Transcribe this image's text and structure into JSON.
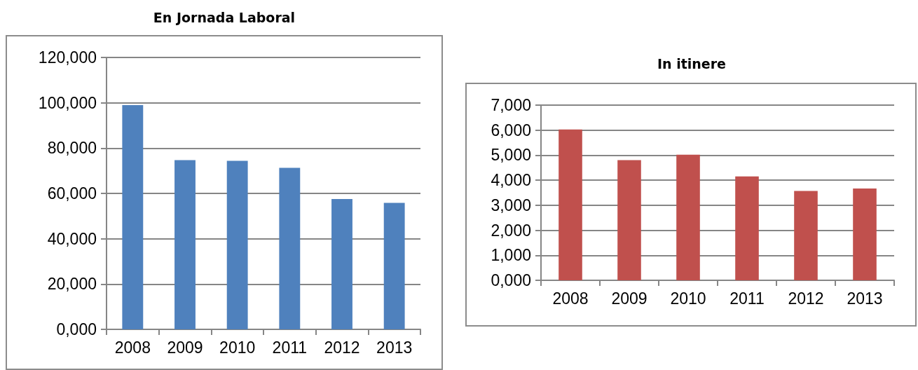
{
  "chart_data": [
    {
      "type": "bar",
      "title": "En Jornada Laboral",
      "categories": [
        "2008",
        "2009",
        "2010",
        "2011",
        "2012",
        "2013"
      ],
      "values": [
        99.0,
        74.7,
        74.4,
        71.3,
        57.5,
        55.8
      ],
      "color": "#4f81bd",
      "ylim": [
        0,
        120
      ],
      "yticks": [
        {
          "value": 0,
          "label": "0,000"
        },
        {
          "value": 20,
          "label": "20,000"
        },
        {
          "value": 40,
          "label": "40,000"
        },
        {
          "value": 60,
          "label": "60,000"
        },
        {
          "value": 80,
          "label": "80,000"
        },
        {
          "value": 100,
          "label": "100,000"
        },
        {
          "value": 120,
          "label": "120,000"
        }
      ],
      "grid": "y"
    },
    {
      "type": "bar",
      "title": "In itinere",
      "categories": [
        "2008",
        "2009",
        "2010",
        "2011",
        "2012",
        "2013"
      ],
      "values": [
        6.03,
        4.8,
        5.02,
        4.15,
        3.57,
        3.67
      ],
      "color": "#c0504d",
      "ylim": [
        0,
        7
      ],
      "yticks": [
        {
          "value": 0,
          "label": "0,000"
        },
        {
          "value": 1,
          "label": "1,000"
        },
        {
          "value": 2,
          "label": "2,000"
        },
        {
          "value": 3,
          "label": "3,000"
        },
        {
          "value": 4,
          "label": "4,000"
        },
        {
          "value": 5,
          "label": "5,000"
        },
        {
          "value": 6,
          "label": "6,000"
        },
        {
          "value": 7,
          "label": "7,000"
        }
      ],
      "grid": "y"
    }
  ]
}
